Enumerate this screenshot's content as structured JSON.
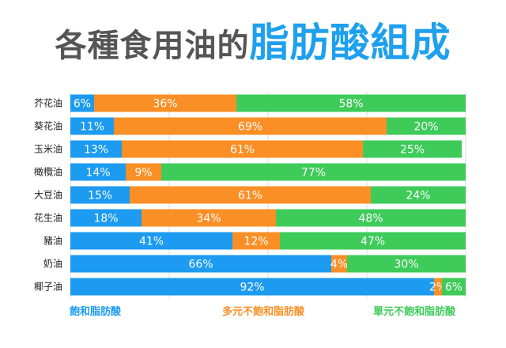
{
  "title": {
    "part1": "各種食用油的",
    "part2": "脂肪酸組成"
  },
  "colors": {
    "saturated": "#1c9bf0",
    "polyunsaturated": "#fa8f26",
    "monounsaturated": "#3ecb5a"
  },
  "legend": [
    {
      "label": "飽和脂肪酸",
      "color": "#1c9bf0"
    },
    {
      "label": "多元不飽和脂肪酸",
      "color": "#fa8f26"
    },
    {
      "label": "單元不飽和脂肪酸",
      "color": "#3ecb5a"
    }
  ],
  "chart_data": {
    "type": "bar",
    "orientation": "horizontal",
    "stacked": true,
    "title": "各種食用油的脂肪酸組成",
    "categories": [
      "芥花油",
      "葵花油",
      "玉米油",
      "橄欖油",
      "大豆油",
      "花生油",
      "豬油",
      "奶油",
      "椰子油"
    ],
    "series": [
      {
        "name": "飽和脂肪酸",
        "values": [
          6,
          11,
          13,
          14,
          15,
          18,
          41,
          66,
          92
        ],
        "labels": [
          "6%",
          "11%",
          "13%",
          "14%",
          "15%",
          "18%",
          "41%",
          "66%",
          "92%"
        ]
      },
      {
        "name": "多元不飽和脂肪酸",
        "values": [
          36,
          69,
          61,
          9,
          61,
          34,
          12,
          4,
          2
        ],
        "labels": [
          "36%",
          "69%",
          "61%",
          "9%",
          "61%",
          "34%",
          "12%",
          "4%",
          "2%"
        ]
      },
      {
        "name": "單元不飽和脂肪酸",
        "values": [
          58,
          20,
          25,
          77,
          24,
          48,
          47,
          30,
          6
        ],
        "labels": [
          "58%",
          "20%",
          "25%",
          "77%",
          "24%",
          "48%",
          "47%",
          "30%",
          "6%"
        ]
      }
    ],
    "xlim": [
      0,
      100
    ],
    "grid": true,
    "legend_position": "bottom"
  }
}
